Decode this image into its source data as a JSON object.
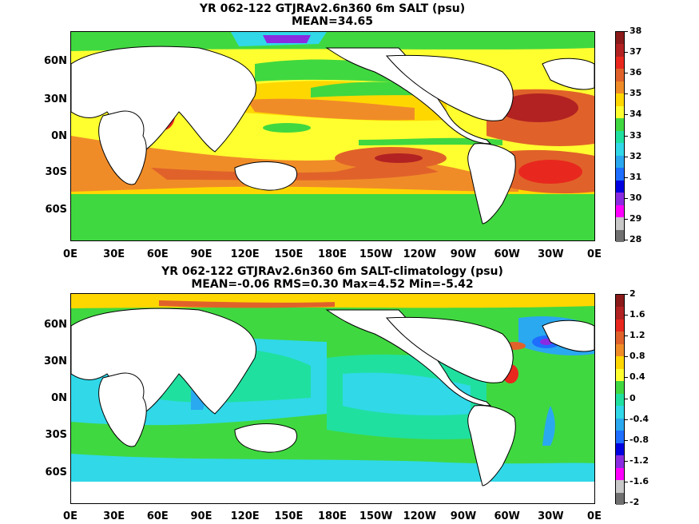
{
  "panels": [
    {
      "title_line1": "YR 062-122 GTJRAv2.6n360 6m SALT (psu)",
      "title_line2": "MEAN=34.65",
      "colorbar": {
        "labels": [
          "38",
          "37",
          "36",
          "35",
          "34",
          "33",
          "32",
          "31",
          "30",
          "29",
          "28"
        ],
        "colors": [
          "#8b1a1a",
          "#b22222",
          "#e8281e",
          "#e0622a",
          "#f08c28",
          "#ffd700",
          "#ffff30",
          "#40d840",
          "#20e0a0",
          "#30d8e8",
          "#2aa8f0",
          "#1e6eff",
          "#0000e0",
          "#8a2be2",
          "#ff00ff",
          "#c8c8c8",
          "#707070"
        ]
      }
    },
    {
      "title_line1": "YR 062-122 GTJRAv2.6n360 6m SALT-climatology (psu)",
      "title_line2": "MEAN=-0.06   RMS=0.30   Max=4.52   Min=-5.42",
      "colorbar": {
        "labels": [
          "2",
          "1.6",
          "1.2",
          "0.8",
          "0.4",
          "0",
          "-0.4",
          "-0.8",
          "-1.2",
          "-1.6",
          "-2"
        ],
        "colors": [
          "#8b1a1a",
          "#b22222",
          "#e8281e",
          "#e0622a",
          "#f08c28",
          "#ffd700",
          "#ffff30",
          "#40d840",
          "#20e0a0",
          "#30d8e8",
          "#2aa8f0",
          "#1e6eff",
          "#0000e0",
          "#8a2be2",
          "#ff00ff",
          "#c8c8c8",
          "#707070"
        ]
      }
    }
  ],
  "axes": {
    "x_ticks": [
      "0E",
      "30E",
      "60E",
      "90E",
      "120E",
      "150E",
      "180E",
      "150W",
      "120W",
      "90W",
      "60W",
      "30W",
      "0E"
    ],
    "y_ticks": [
      "60N",
      "30N",
      "0N",
      "30S",
      "60S"
    ]
  },
  "chart_data": [
    {
      "type": "heatmap",
      "title": "YR 062-122 GTJRAv2.6n360 6m SALT (psu)",
      "subtitle": "MEAN=34.65",
      "x_range": [
        0,
        360
      ],
      "y_range": [
        -80,
        80
      ],
      "color_levels": [
        28,
        29,
        30,
        31,
        32,
        33,
        34,
        35,
        36,
        37,
        38
      ],
      "mean": 34.65
    },
    {
      "type": "heatmap",
      "title": "YR 062-122 GTJRAv2.6n360 6m SALT-climatology (psu)",
      "subtitle": "MEAN=-0.06   RMS=0.30   Max=4.52   Min=-5.42",
      "x_range": [
        0,
        360
      ],
      "y_range": [
        -80,
        80
      ],
      "color_levels": [
        -2,
        -1.6,
        -1.2,
        -0.8,
        -0.4,
        0,
        0.4,
        0.8,
        1.2,
        1.6,
        2
      ],
      "mean": -0.06,
      "rms": 0.3,
      "max": 4.52,
      "min": -5.42
    }
  ]
}
